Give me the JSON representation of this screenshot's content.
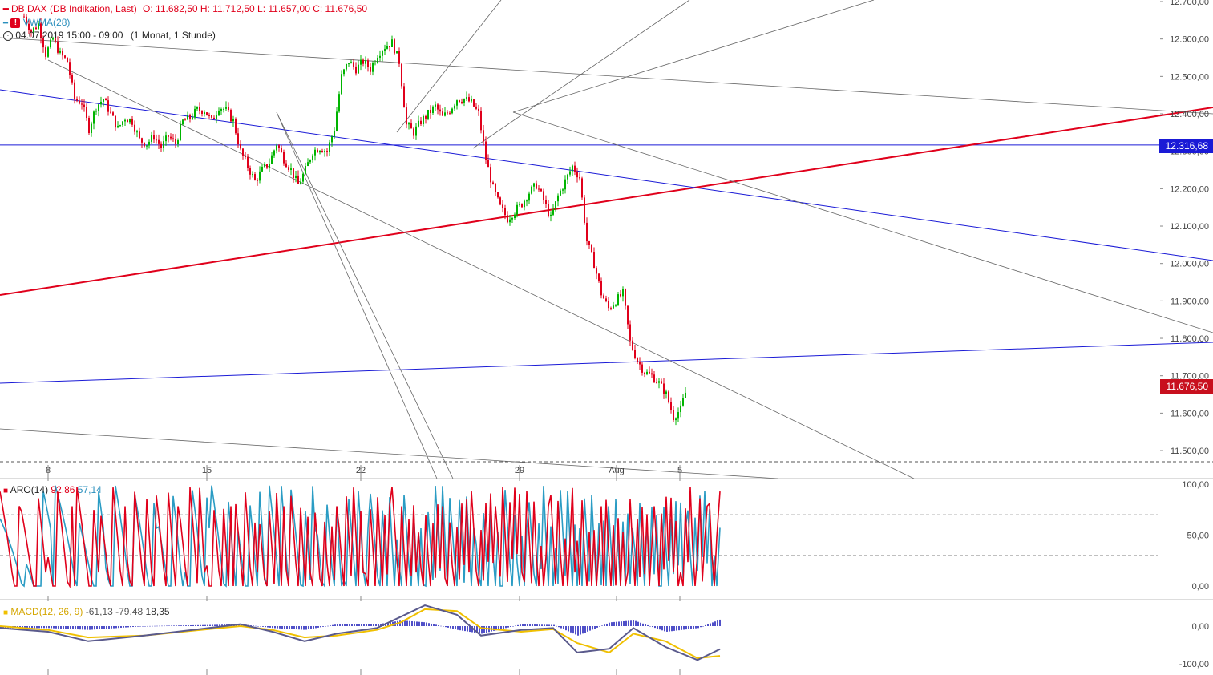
{
  "header": {
    "instrument": "DB DAX (DB Indikation, Last)",
    "ohlc": "O: 11.682,50  H: 11.712,50  L: 11.657,00  C: 11.676,50",
    "indicator": "VWMA(28)",
    "alert_icon": "exclamation-icon",
    "clock_icon": "clock-icon",
    "range": "04.07.2019 15:00 - 09:00",
    "period": "(1 Monat, 1 Stunde)"
  },
  "panels": {
    "aroon": {
      "label": "ARO(14)",
      "up": "92,86",
      "down": "57,14"
    },
    "macd": {
      "label": "MACD(12, 26, 9)",
      "macd": "-61,13",
      "signal": "-79,48",
      "hist": "18,35"
    }
  },
  "price_tags": {
    "line_level": "12.316,68",
    "last_price": "11.676,50"
  },
  "colors": {
    "up": "#00b400",
    "down": "#e0001b",
    "aroon_up": "#e0001b",
    "aroon_down": "#2a9cc4",
    "macd": "#5a5a8c",
    "signal": "#f0c000",
    "hist": "#5050c8",
    "hline": "#1a1ad6",
    "trend_red": "#e0001b"
  },
  "chart_data": [
    {
      "type": "candlestick",
      "title": "DB DAX (DB Indikation, Last)",
      "y_ticks": [
        "12.700,00",
        "12.600,00",
        "12.500,00",
        "12.400,00",
        "12.300,00",
        "12.200,00",
        "12.100,00",
        "12.000,00",
        "11.900,00",
        "11.800,00",
        "11.700,00",
        "11.600,00",
        "11.500,00"
      ],
      "ylim": [
        11470,
        12730
      ],
      "x_labels": [
        "8",
        "15",
        "22",
        "29",
        "Aug",
        "5"
      ],
      "horizontal_line": 12316.68,
      "last": 11676.5,
      "close_path_approx": [
        [
          0,
          12660
        ],
        [
          3,
          12620
        ],
        [
          6,
          12640
        ],
        [
          9,
          12560
        ],
        [
          12,
          12600
        ],
        [
          15,
          12560
        ],
        [
          18,
          12540
        ],
        [
          21,
          12440
        ],
        [
          24,
          12430
        ],
        [
          27,
          12360
        ],
        [
          30,
          12420
        ],
        [
          33,
          12440
        ],
        [
          36,
          12400
        ],
        [
          39,
          12360
        ],
        [
          42,
          12390
        ],
        [
          45,
          12380
        ],
        [
          48,
          12330
        ],
        [
          51,
          12320
        ],
        [
          54,
          12340
        ],
        [
          57,
          12310
        ],
        [
          60,
          12340
        ],
        [
          63,
          12320
        ],
        [
          66,
          12380
        ],
        [
          69,
          12390
        ],
        [
          72,
          12410
        ],
        [
          75,
          12410
        ],
        [
          78,
          12380
        ],
        [
          81,
          12420
        ],
        [
          84,
          12410
        ],
        [
          87,
          12380
        ],
        [
          90,
          12300
        ],
        [
          93,
          12260
        ],
        [
          96,
          12220
        ],
        [
          99,
          12250
        ],
        [
          102,
          12270
        ],
        [
          105,
          12320
        ],
        [
          108,
          12280
        ],
        [
          111,
          12250
        ],
        [
          114,
          12210
        ],
        [
          117,
          12250
        ],
        [
          120,
          12300
        ],
        [
          123,
          12310
        ],
        [
          126,
          12300
        ],
        [
          129,
          12360
        ],
        [
          132,
          12500
        ],
        [
          135,
          12540
        ],
        [
          138,
          12520
        ],
        [
          141,
          12540
        ],
        [
          144,
          12520
        ],
        [
          147,
          12560
        ],
        [
          150,
          12580
        ],
        [
          153,
          12590
        ],
        [
          156,
          12540
        ],
        [
          159,
          12370
        ],
        [
          162,
          12350
        ],
        [
          165,
          12380
        ],
        [
          168,
          12400
        ],
        [
          171,
          12420
        ],
        [
          174,
          12390
        ],
        [
          177,
          12410
        ],
        [
          180,
          12440
        ],
        [
          183,
          12440
        ],
        [
          186,
          12430
        ],
        [
          189,
          12400
        ],
        [
          192,
          12280
        ],
        [
          195,
          12200
        ],
        [
          198,
          12150
        ],
        [
          201,
          12120
        ],
        [
          204,
          12140
        ],
        [
          207,
          12160
        ],
        [
          210,
          12190
        ],
        [
          213,
          12210
        ],
        [
          216,
          12170
        ],
        [
          219,
          12120
        ],
        [
          222,
          12180
        ],
        [
          225,
          12220
        ],
        [
          228,
          12260
        ],
        [
          231,
          12230
        ],
        [
          234,
          12060
        ],
        [
          237,
          12000
        ],
        [
          240,
          11920
        ],
        [
          243,
          11880
        ],
        [
          246,
          11900
        ],
        [
          249,
          11920
        ],
        [
          252,
          11790
        ],
        [
          255,
          11740
        ],
        [
          258,
          11710
        ],
        [
          261,
          11700
        ],
        [
          264,
          11680
        ],
        [
          267,
          11650
        ],
        [
          270,
          11590
        ],
        [
          273,
          11610
        ],
        [
          276,
          11676.5
        ]
      ]
    },
    {
      "type": "line",
      "title": "ARO(14)",
      "series": [
        {
          "name": "ARO Up",
          "last": 92.86
        },
        {
          "name": "ARO Down",
          "last": 57.14
        }
      ],
      "y_ticks": [
        "100,00",
        "50,00",
        "0,00"
      ],
      "ylim": [
        -10,
        105
      ]
    },
    {
      "type": "line",
      "title": "MACD(12, 26, 9)",
      "series": [
        {
          "name": "MACD",
          "last": -61.13
        },
        {
          "name": "Signal",
          "last": -79.48
        },
        {
          "name": "Histogram",
          "last": 18.35
        }
      ],
      "y_ticks": [
        "0,00",
        "-100,00"
      ],
      "ylim": [
        -115,
        60
      ]
    }
  ]
}
